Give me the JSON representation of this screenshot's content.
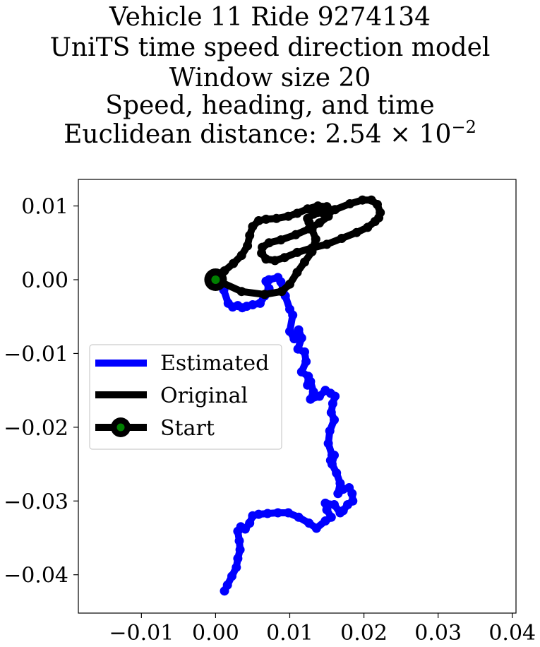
{
  "chart_data": {
    "type": "line",
    "title_lines": [
      "Vehicle 11 Ride 9274134",
      "UniTS time speed direction model",
      "Window size 20",
      "Speed, heading, and time"
    ],
    "title_metric_label": "Euclidean distance: ",
    "title_metric_mantissa": "2.54",
    "title_metric_times": " × 10",
    "title_metric_exponent": "−2",
    "xlim": [
      -0.0185,
      0.0405
    ],
    "ylim": [
      -0.0452,
      0.0136
    ],
    "xticks": [
      -0.01,
      0.0,
      0.01,
      0.02,
      0.03,
      0.04
    ],
    "xtick_labels": [
      "−0.01",
      "0.00",
      "0.01",
      "0.02",
      "0.03",
      "0.04"
    ],
    "yticks": [
      0.01,
      0.0,
      -0.01,
      -0.02,
      -0.03,
      -0.04
    ],
    "ytick_labels": [
      "0.01",
      "0.00",
      "−0.01",
      "−0.02",
      "−0.03",
      "−0.04"
    ],
    "grid": false,
    "legend_position": "center-left",
    "series": [
      {
        "name": "Estimated",
        "color": "#0000ff",
        "x": [
          0.0,
          0.0008,
          0.0011,
          0.0017,
          0.0023,
          0.003,
          0.0036,
          0.0042,
          0.005,
          0.006,
          0.0066,
          0.0072,
          0.0068,
          0.0072,
          0.0084,
          0.0088,
          0.0094,
          0.01,
          0.0104,
          0.01,
          0.0106,
          0.0112,
          0.0116,
          0.0111,
          0.012,
          0.0122,
          0.0116,
          0.0125,
          0.0124,
          0.0128,
          0.0132,
          0.0128,
          0.014,
          0.0148,
          0.0155,
          0.0161,
          0.0158,
          0.0156,
          0.016,
          0.0154,
          0.0152,
          0.0157,
          0.0155,
          0.016,
          0.0157,
          0.0163,
          0.0168,
          0.0165,
          0.0172,
          0.018,
          0.0184,
          0.0185,
          0.0178,
          0.0172,
          0.0168,
          0.016,
          0.0148,
          0.015,
          0.0156,
          0.0148,
          0.0136,
          0.0126,
          0.0112,
          0.0098,
          0.0084,
          0.007,
          0.0058,
          0.005,
          0.0046,
          0.004,
          0.0034,
          0.003,
          0.0032,
          0.0033,
          0.003,
          0.0028,
          0.0022,
          0.0016,
          0.0012
        ],
        "y": [
          0.0,
          -0.0003,
          -0.0014,
          -0.0032,
          -0.0037,
          -0.0035,
          -0.0038,
          -0.0036,
          -0.0034,
          -0.0032,
          -0.0022,
          -0.0012,
          -0.0002,
          0.0,
          0.0003,
          -0.0003,
          -0.0022,
          -0.004,
          -0.0048,
          -0.007,
          -0.008,
          -0.0068,
          -0.0079,
          -0.0094,
          -0.0098,
          -0.0111,
          -0.0125,
          -0.0131,
          -0.0143,
          -0.0138,
          -0.0152,
          -0.0162,
          -0.0158,
          -0.015,
          -0.0154,
          -0.0158,
          -0.0168,
          -0.018,
          -0.019,
          -0.0205,
          -0.0222,
          -0.0238,
          -0.0245,
          -0.0238,
          -0.025,
          -0.0262,
          -0.0276,
          -0.029,
          -0.0284,
          -0.0282,
          -0.029,
          -0.03,
          -0.0305,
          -0.0313,
          -0.0316,
          -0.0305,
          -0.0303,
          -0.0312,
          -0.0322,
          -0.0327,
          -0.0337,
          -0.033,
          -0.0322,
          -0.0316,
          -0.0316,
          -0.0317,
          -0.0318,
          -0.032,
          -0.033,
          -0.0338,
          -0.0335,
          -0.0341,
          -0.0354,
          -0.0366,
          -0.0378,
          -0.039,
          -0.0402,
          -0.0414,
          -0.0422
        ]
      },
      {
        "name": "Original",
        "color": "#000000",
        "x": [
          0.0,
          0.0035,
          0.0066,
          0.0089,
          0.01,
          0.011,
          0.012,
          0.013,
          0.0135,
          0.013,
          0.0126,
          0.0124,
          0.0132,
          0.0144,
          0.0161,
          0.0181,
          0.0198,
          0.021,
          0.0218,
          0.0222,
          0.022,
          0.0215,
          0.0205,
          0.019,
          0.017,
          0.015,
          0.013,
          0.011,
          0.0093,
          0.008,
          0.0068,
          0.0062,
          0.0063,
          0.0072,
          0.0088,
          0.0108,
          0.0126,
          0.014,
          0.0152,
          0.0156,
          0.015,
          0.0138,
          0.0124,
          0.011,
          0.0098,
          0.0082,
          0.0068,
          0.0058,
          0.005,
          0.0046,
          0.0043,
          0.0035,
          0.0024,
          0.0012,
          0.0003,
          0.0
        ],
        "y": [
          0.0,
          -0.0016,
          -0.002,
          -0.0016,
          -0.0006,
          0.001,
          0.0024,
          0.0038,
          0.0055,
          0.0068,
          0.0078,
          0.0083,
          0.0089,
          0.0091,
          0.0095,
          0.0103,
          0.0108,
          0.0108,
          0.0102,
          0.0091,
          0.0084,
          0.0079,
          0.0071,
          0.0064,
          0.0056,
          0.0048,
          0.0043,
          0.0037,
          0.003,
          0.0026,
          0.0028,
          0.0036,
          0.0044,
          0.005,
          0.0054,
          0.0061,
          0.0069,
          0.0077,
          0.0086,
          0.0094,
          0.0099,
          0.01,
          0.0096,
          0.009,
          0.0086,
          0.0083,
          0.0082,
          0.008,
          0.0072,
          0.006,
          0.0046,
          0.0033,
          0.0022,
          0.0012,
          0.0004,
          0.0
        ]
      },
      {
        "name": "Start",
        "marker_fill": "#008000",
        "marker_edge": "#000000",
        "x": [
          0.0
        ],
        "y": [
          0.0
        ]
      }
    ]
  }
}
